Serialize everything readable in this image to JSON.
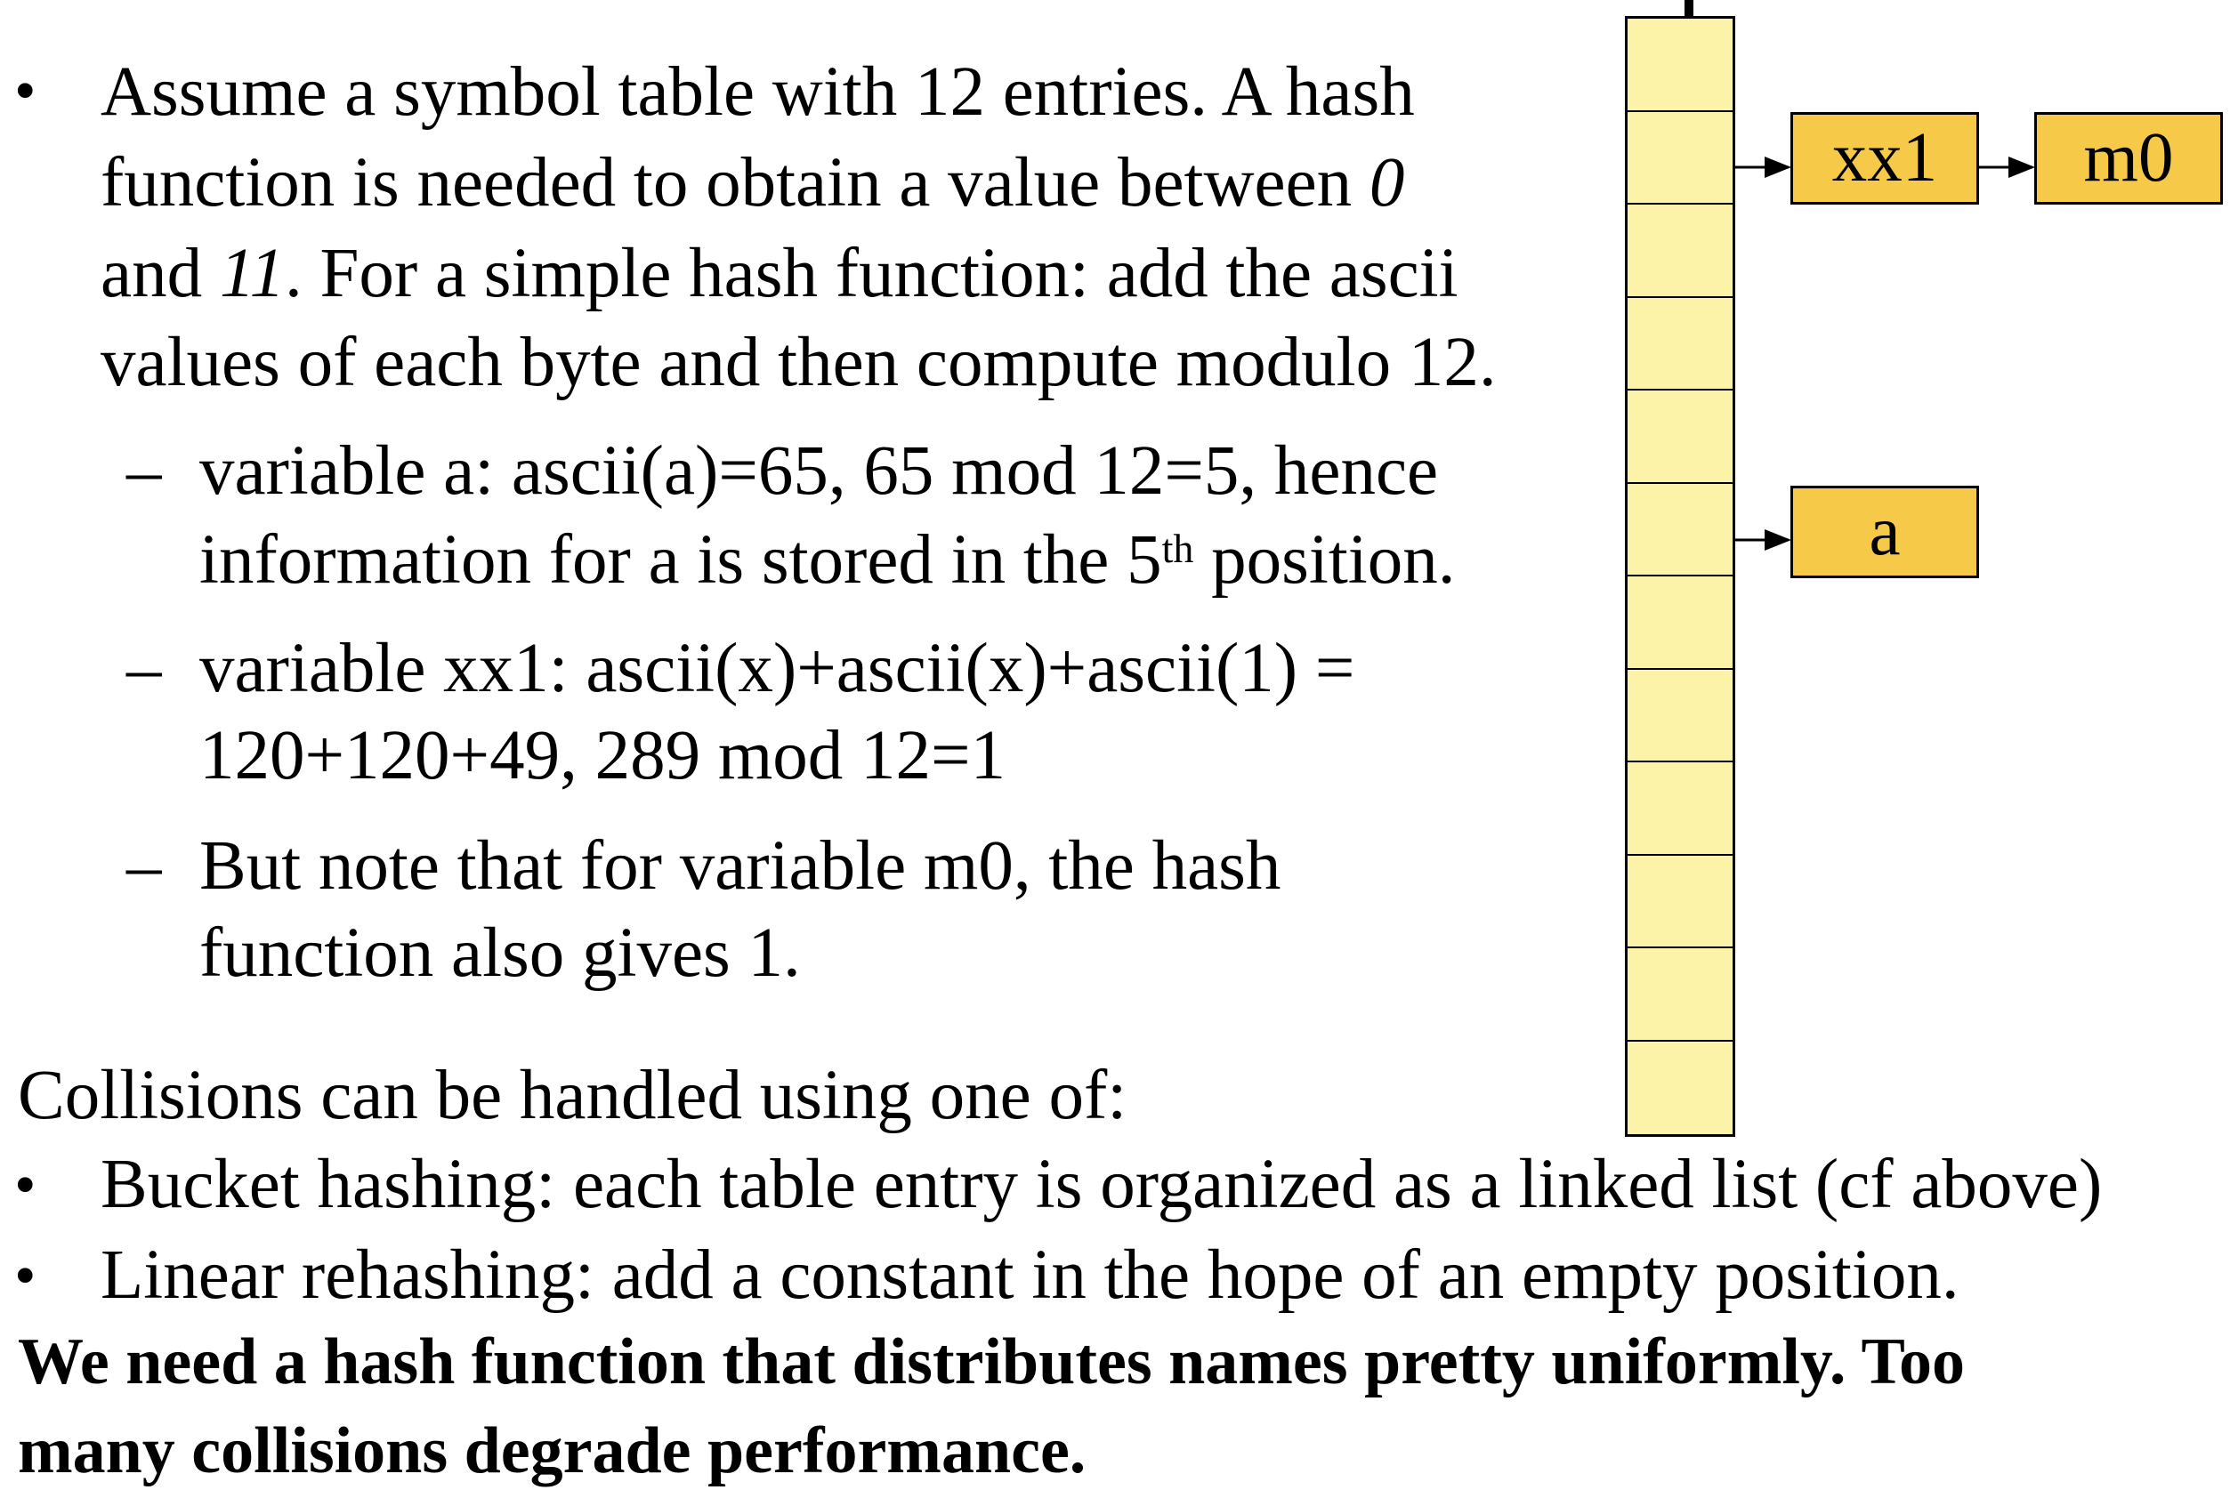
{
  "slide": {
    "bullet_marker": "•",
    "dash_marker": "–",
    "intro": {
      "line1": "Assume a symbol table with 12 entries. A hash",
      "line2_a": "function is needed to obtain a value between ",
      "line2_zero": "0",
      "line3_a": "and ",
      "line3_eleven": "11",
      "line3_b": ". For a simple hash function: add the ascii",
      "line4": "values of each byte and then compute modulo 12."
    },
    "sub_a": {
      "line1": "variable a: ascii(a)=65, 65 mod 12=5, hence",
      "line2_a": "information for a is stored in the 5",
      "line2_sup": "th",
      "line2_b": " position."
    },
    "sub_xx1": {
      "line1": "variable xx1: ascii(x)+ascii(x)+ascii(1) =",
      "line2": "120+120+49, 289 mod 12=1"
    },
    "sub_m0": {
      "line1": "But note that for variable m0, the hash",
      "line2": "function also gives 1."
    },
    "collisions_heading": "Collisions can be handled using one of:",
    "bucket": "Bucket hashing: each table entry is organized as a linked list (cf above)",
    "linear": "Linear rehashing:  add a constant in the hope of an empty position.",
    "conclusion_line1": "We need a hash function that distributes names pretty uniformly. Too",
    "conclusion_line2": "many collisions degrade performance."
  },
  "diagram": {
    "table_entries": 12,
    "nodes": {
      "xx1": "xx1",
      "m0": "m0",
      "a": "a"
    },
    "colors": {
      "table_fill": "#fdf3a8",
      "node_fill": "#f7c948",
      "border": "#000000"
    }
  }
}
